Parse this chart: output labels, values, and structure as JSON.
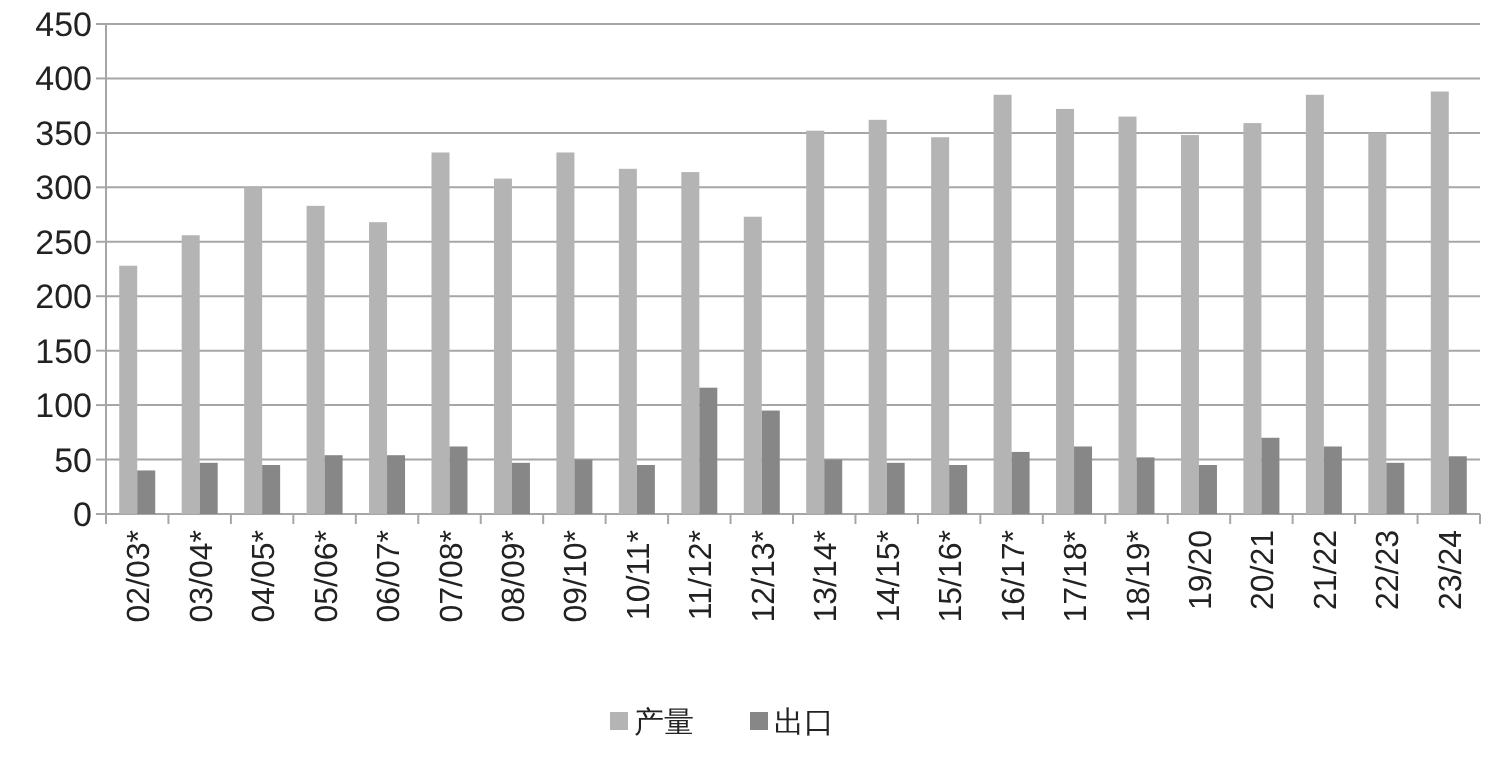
{
  "chart_data": {
    "type": "bar",
    "categories": [
      "02/03*",
      "03/04*",
      "04/05*",
      "05/06*",
      "06/07*",
      "07/08*",
      "08/09*",
      "09/10*",
      "10/11*",
      "11/12*",
      "12/13*",
      "13/14*",
      "14/15*",
      "15/16*",
      "16/17*",
      "17/18*",
      "18/19*",
      "19/20",
      "20/21",
      "21/22",
      "22/23",
      "23/24"
    ],
    "series": [
      {
        "name": "产量",
        "color": "#b4b4b4",
        "values": [
          228,
          256,
          300,
          283,
          268,
          332,
          308,
          332,
          317,
          314,
          273,
          352,
          362,
          346,
          385,
          372,
          365,
          348,
          359,
          385,
          350,
          388
        ]
      },
      {
        "name": "出口",
        "color": "#878787",
        "values": [
          40,
          47,
          45,
          54,
          54,
          62,
          47,
          50,
          45,
          116,
          95,
          50,
          47,
          45,
          57,
          62,
          52,
          45,
          70,
          62,
          47,
          53
        ]
      }
    ],
    "ylim": [
      0,
      450
    ],
    "yticks": [
      0,
      50,
      100,
      150,
      200,
      250,
      300,
      350,
      400,
      450
    ],
    "grid": "y",
    "legend": "bottom"
  }
}
